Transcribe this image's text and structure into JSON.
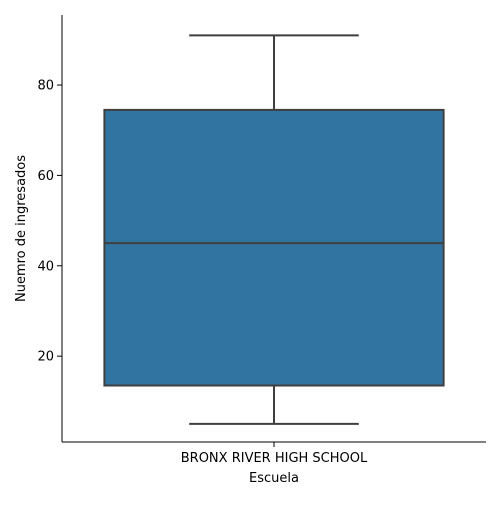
{
  "chart_data": {
    "type": "box",
    "xlabel": "Escuela",
    "ylabel": "Nuemro de ingresados",
    "categories": [
      "BRONX RIVER HIGH SCHOOL"
    ],
    "boxes": [
      {
        "category": "BRONX RIVER HIGH SCHOOL",
        "whisker_low": 5,
        "q1": 13.5,
        "median": 45,
        "q3": 74.5,
        "whisker_high": 91
      }
    ],
    "ylim": [
      1,
      95.5
    ],
    "yticks": [
      20,
      40,
      60,
      80
    ],
    "grid": false,
    "colors": {
      "box_fill": "#3274a1",
      "box_edge": "#3f3f3f",
      "axis": "#000000"
    }
  }
}
